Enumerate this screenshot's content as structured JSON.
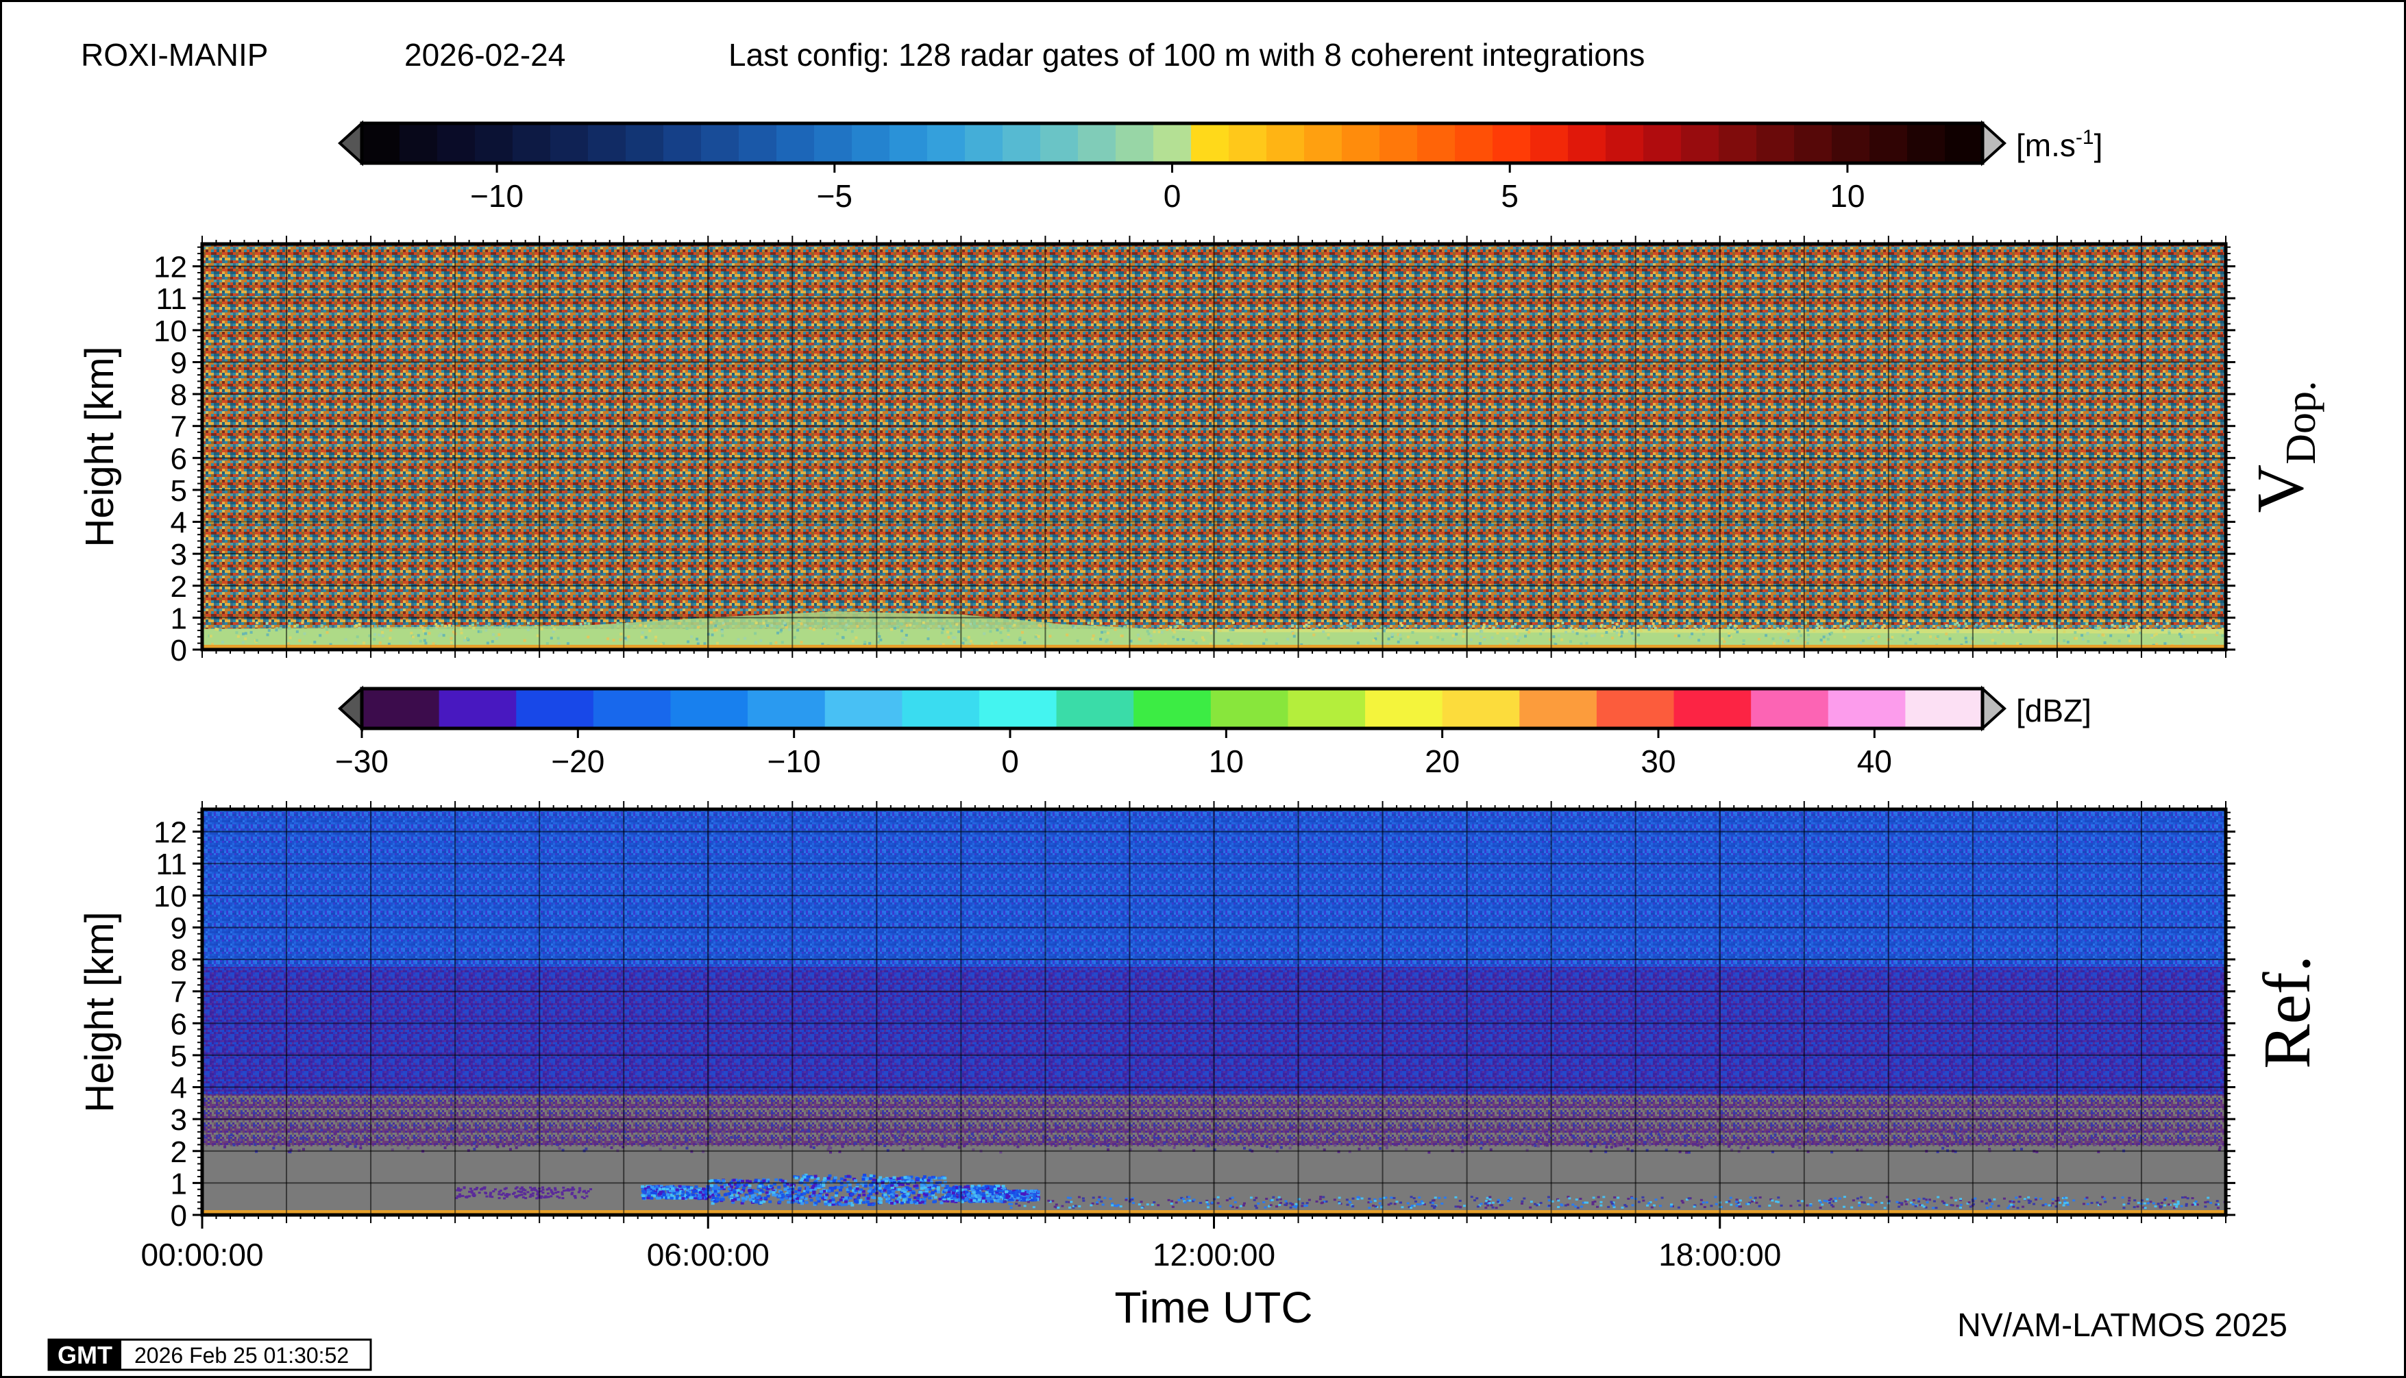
{
  "header": {
    "site": "ROXI-MANIP",
    "date": "2026-02-24",
    "config": "Last config: 128 radar gates of 100 m with 8 coherent integrations"
  },
  "colors": {
    "background_vdop_noise": [
      "#7d3b2a",
      "#b8442b",
      "#d24a24",
      "#3a6f8c",
      "#2d8aa6",
      "#e2b244",
      "#8a6a2a",
      "#4a9aa8",
      "#c97b2c",
      "#7a2a1e",
      "#1f5f7a",
      "#d6c05a"
    ],
    "vdop_low": "#a8d88a",
    "vdop_low2": "#cfe07a",
    "ref_high": "#1f5ad8",
    "ref_mid": "#3a2ab0",
    "ref_low": "#5a2a8a",
    "ref_grey": "#7a7a7a",
    "ref_cloud": "#2a7af0",
    "ground_line": "#e6a02a"
  },
  "chart_data": [
    {
      "type": "heatmap",
      "panel_label": "V",
      "panel_label_sub": "Dop.",
      "ylabel": "Height [km]",
      "yticks": [
        "0",
        "1",
        "2",
        "3",
        "4",
        "5",
        "6",
        "7",
        "8",
        "9",
        "10",
        "11",
        "12"
      ],
      "ylim": [
        0,
        12.7
      ],
      "xlim_hours": [
        0,
        24
      ],
      "colorbar": {
        "unit": "[m.s",
        "unit_sup": "-1",
        "unit_close": "]",
        "ticks": [
          "−10",
          "−5",
          "0",
          "5",
          "10"
        ],
        "tick_values": [
          -10,
          -5,
          0,
          5,
          10
        ],
        "range": [
          -12,
          12
        ],
        "colors": [
          "#050308",
          "#08081a",
          "#0a0c28",
          "#0b1234",
          "#0d1a44",
          "#0f2254",
          "#112b64",
          "#123574",
          "#154088",
          "#184c98",
          "#1a58a8",
          "#1c66b8",
          "#2074c4",
          "#2483cf",
          "#2a92d8",
          "#34a0dc",
          "#44aed8",
          "#56bad2",
          "#6ac4c6",
          "#80ccb8",
          "#98d6a6",
          "#b4e094",
          "#ffd91a",
          "#ffc81a",
          "#ffb414",
          "#ffa010",
          "#ff8c0c",
          "#ff780a",
          "#ff6408",
          "#ff5006",
          "#ff3c06",
          "#f22808",
          "#e0180a",
          "#c8100c",
          "#b00c0e",
          "#980c0e",
          "#800c0c",
          "#6a0a0a",
          "#560808",
          "#420606",
          "#300404",
          "#1e0202",
          "#100000"
        ]
      }
    },
    {
      "type": "heatmap",
      "panel_label": "Ref.",
      "ylabel": "Height [km]",
      "xlabel": "Time UTC",
      "yticks": [
        "0",
        "1",
        "2",
        "3",
        "4",
        "5",
        "6",
        "7",
        "8",
        "9",
        "10",
        "11",
        "12"
      ],
      "ylim": [
        0,
        12.7
      ],
      "xticks": [
        "00:00:00",
        "06:00:00",
        "12:00:00",
        "18:00:00"
      ],
      "xtick_hours": [
        0,
        6,
        12,
        18
      ],
      "xlim_hours": [
        0,
        24
      ],
      "colorbar": {
        "unit": "[dBZ]",
        "ticks": [
          "−30",
          "−20",
          "−10",
          "0",
          "10",
          "20",
          "30",
          "40"
        ],
        "tick_values": [
          -30,
          -20,
          -10,
          0,
          10,
          20,
          30,
          40
        ],
        "range": [
          -30,
          45
        ],
        "colors": [
          "#3c0c4c",
          "#4818c0",
          "#1848e8",
          "#1868ec",
          "#1880ee",
          "#2a9af0",
          "#48c0f4",
          "#3adcf0",
          "#44f4f0",
          "#3adca8",
          "#3cec44",
          "#88e63c",
          "#b4ee3c",
          "#f4f43c",
          "#fcdc3c",
          "#fc9c3c",
          "#fc5c3c",
          "#fc2444",
          "#fc64b4",
          "#fc9cec",
          "#fce0f4"
        ]
      }
    }
  ],
  "footer": {
    "credit": "NV/AM-LATMOS 2025",
    "gmt_logo": "GMT",
    "timestamp": "2026 Feb 25 01:30:52"
  }
}
